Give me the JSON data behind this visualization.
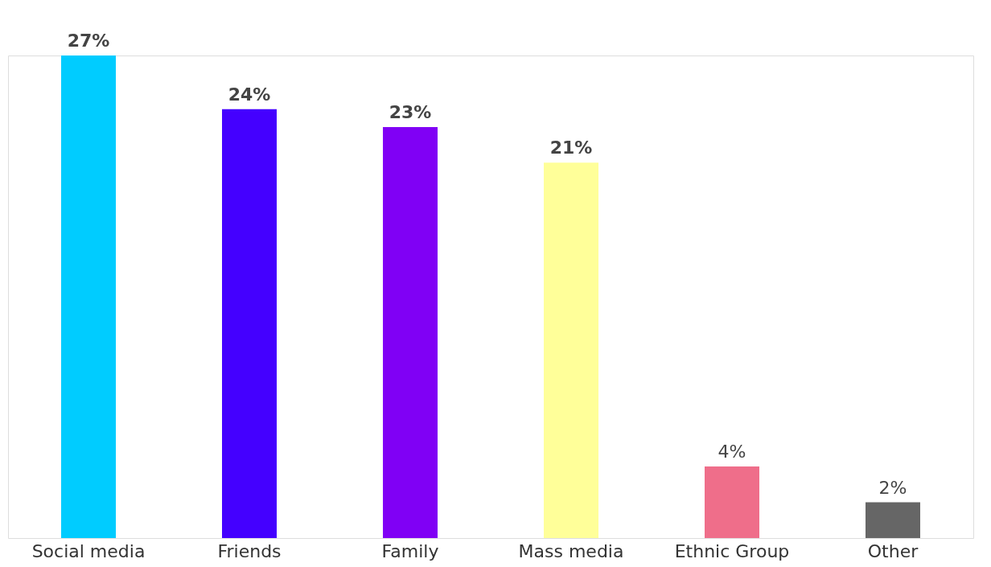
{
  "chart_data": {
    "type": "bar",
    "categories": [
      "Social media",
      "Friends",
      "Family",
      "Mass media",
      "Ethnic Group",
      "Other"
    ],
    "values": [
      27,
      24,
      23,
      21,
      4,
      2
    ],
    "colors": [
      "#00ccff",
      "#4400ff",
      "#8000f5",
      "#ffff99",
      "#ef6e8a",
      "#666666"
    ],
    "value_labels": [
      "27%",
      "24%",
      "23%",
      "21%",
      "4%",
      "2%"
    ],
    "grid": false
  }
}
